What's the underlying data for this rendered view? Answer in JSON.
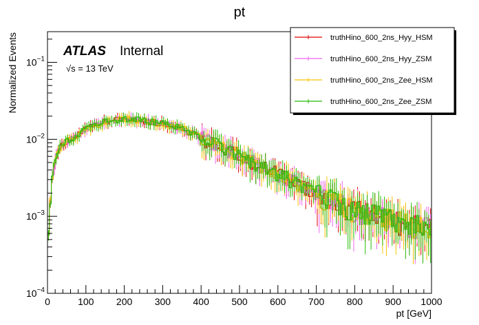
{
  "chart_data": {
    "type": "line",
    "title": "pt",
    "xlabel": "pt [GeV]",
    "ylabel": "Normalized Events",
    "xlim": [
      0,
      1000
    ],
    "ylim": [
      0.0001,
      0.25
    ],
    "yscale": "log",
    "x_tick_labels": [
      "0",
      "100",
      "200",
      "300",
      "400",
      "500",
      "600",
      "700",
      "800",
      "900",
      "1000"
    ],
    "y_tick_labels": [
      {
        "base": "10",
        "exp": "−4",
        "value": 0.0001
      },
      {
        "base": "10",
        "exp": "−3",
        "value": 0.001
      },
      {
        "base": "10",
        "exp": "−2",
        "value": 0.01
      },
      {
        "base": "10",
        "exp": "−1",
        "value": 0.1
      }
    ],
    "annotations": {
      "atlas": "ATLAS",
      "internal": "Internal",
      "energy_sqrt": "√s",
      "energy_value": " = 13 TeV"
    },
    "legend_position": "top-right",
    "series": [
      {
        "name": "truthHino_600_2ns_Hyy_HSM",
        "color": "#dd0000"
      },
      {
        "name": "truthHino_600_2ns_Hyy_ZSM",
        "color": "#ee66ee"
      },
      {
        "name": "truthHino_600_2ns_Zee_HSM",
        "color": "#f5c400"
      },
      {
        "name": "truthHino_600_2ns_Zee_ZSM",
        "color": "#22bb00"
      }
    ],
    "shape_x": [
      0,
      5,
      10,
      20,
      30,
      50,
      75,
      100,
      150,
      200,
      250,
      300,
      350,
      400,
      450,
      500,
      550,
      600,
      650,
      700,
      750,
      800,
      850,
      900,
      950,
      1000
    ],
    "shape_y": [
      0.0004,
      0.001,
      0.0025,
      0.0055,
      0.0075,
      0.0095,
      0.011,
      0.0135,
      0.017,
      0.0185,
      0.0175,
      0.016,
      0.014,
      0.0105,
      0.008,
      0.0063,
      0.0047,
      0.0036,
      0.0027,
      0.002,
      0.0016,
      0.0012,
      0.00105,
      0.0009,
      0.0008,
      0.0007
    ],
    "bin_width": 5
  }
}
